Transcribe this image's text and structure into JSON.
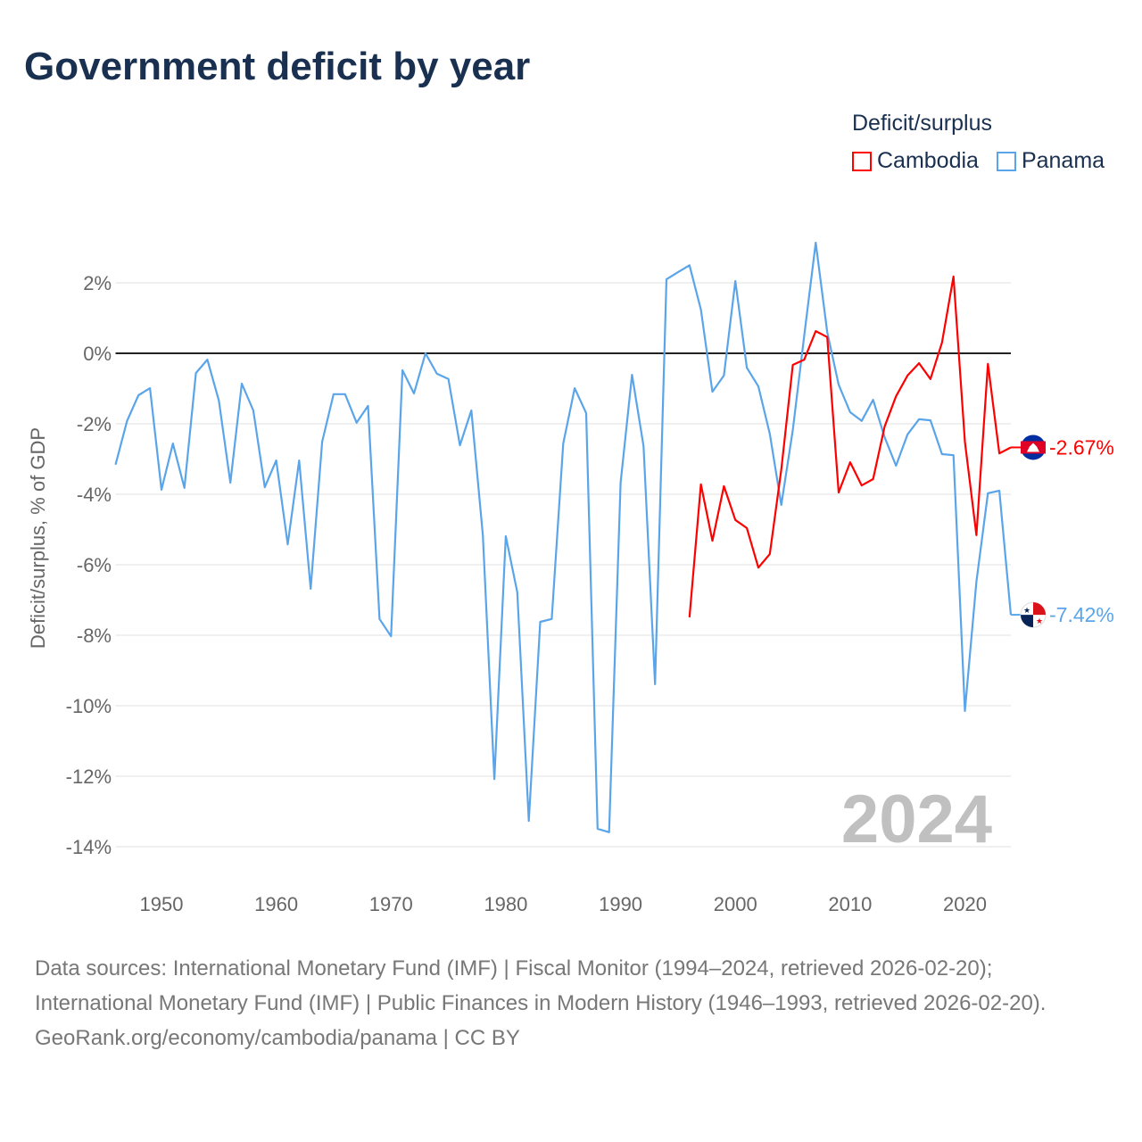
{
  "title": "Government deficit by year",
  "legend": {
    "title": "Deficit/surplus"
  },
  "footer": {
    "sources": "Data sources: International Monetary Fund (IMF) | Fiscal Monitor (1994–2024, retrieved 2026-02-20); International Monetary Fund (IMF) | Public Finances in Modern History (1946–1993, retrieved 2026-02-20).",
    "credit": "GeoRank.org/economy/cambodia/panama | CC BY"
  },
  "chart_data": {
    "type": "line",
    "title": "Government deficit by year",
    "xlabel": "",
    "ylabel": "Deficit/surplus, % of GDP",
    "xlim": [
      1946,
      2024
    ],
    "ylim": [
      -15,
      3.5
    ],
    "xticks": [
      1950,
      1960,
      1970,
      1980,
      1990,
      2000,
      2010,
      2020
    ],
    "yticks": [
      2,
      0,
      -2,
      -4,
      -6,
      -8,
      -10,
      -12,
      -14
    ],
    "ytick_labels": [
      "2%",
      "0%",
      "-2%",
      "-4%",
      "-6%",
      "-8%",
      "-10%",
      "-12%",
      "-14%"
    ],
    "watermark_year": "2024",
    "legend_placement": "top-right",
    "series": [
      {
        "name": "Cambodia",
        "color": "#ff0000",
        "end_label": "-2.67%",
        "start_year": 1996,
        "values": [
          -7.49,
          -3.72,
          -5.32,
          -3.77,
          -4.73,
          -4.96,
          -6.08,
          -5.7,
          -3.3,
          -0.33,
          -0.18,
          0.63,
          0.46,
          -3.95,
          -3.09,
          -3.75,
          -3.57,
          -2.08,
          -1.22,
          -0.63,
          -0.28,
          -0.73,
          0.3,
          2.18,
          -2.51,
          -5.16,
          -0.3,
          -2.84,
          -2.67
        ]
      },
      {
        "name": "Panama",
        "color": "#5aa5ea",
        "end_label": "-7.42%",
        "start_year": 1946,
        "values": [
          -3.16,
          -1.92,
          -1.19,
          -0.99,
          -3.87,
          -2.56,
          -3.82,
          -0.56,
          -0.18,
          -1.34,
          -3.67,
          -0.86,
          -1.62,
          -3.8,
          -3.04,
          -5.42,
          -3.04,
          -6.68,
          -2.51,
          -1.16,
          -1.16,
          -1.97,
          -1.49,
          -7.54,
          -8.03,
          -0.48,
          -1.14,
          0.0,
          -0.58,
          -0.73,
          -2.61,
          -1.62,
          -5.16,
          -12.08,
          -5.19,
          -6.78,
          -13.27,
          -7.62,
          -7.54,
          -2.56,
          -0.99,
          -1.7,
          -13.49,
          -13.59,
          -3.67,
          -0.61,
          -2.63,
          -9.39,
          2.1,
          2.3,
          2.5,
          1.24,
          -1.09,
          -0.63,
          2.05,
          -0.41,
          -0.94,
          -2.28,
          -4.3,
          -2.18,
          0.5,
          3.14,
          0.6,
          -0.89,
          -1.67,
          -1.92,
          -1.32,
          -2.38,
          -3.19,
          -2.3,
          -1.87,
          -1.9,
          -2.86,
          -2.89,
          -10.15,
          -6.48,
          -3.97,
          -3.9,
          -7.42
        ]
      }
    ]
  }
}
